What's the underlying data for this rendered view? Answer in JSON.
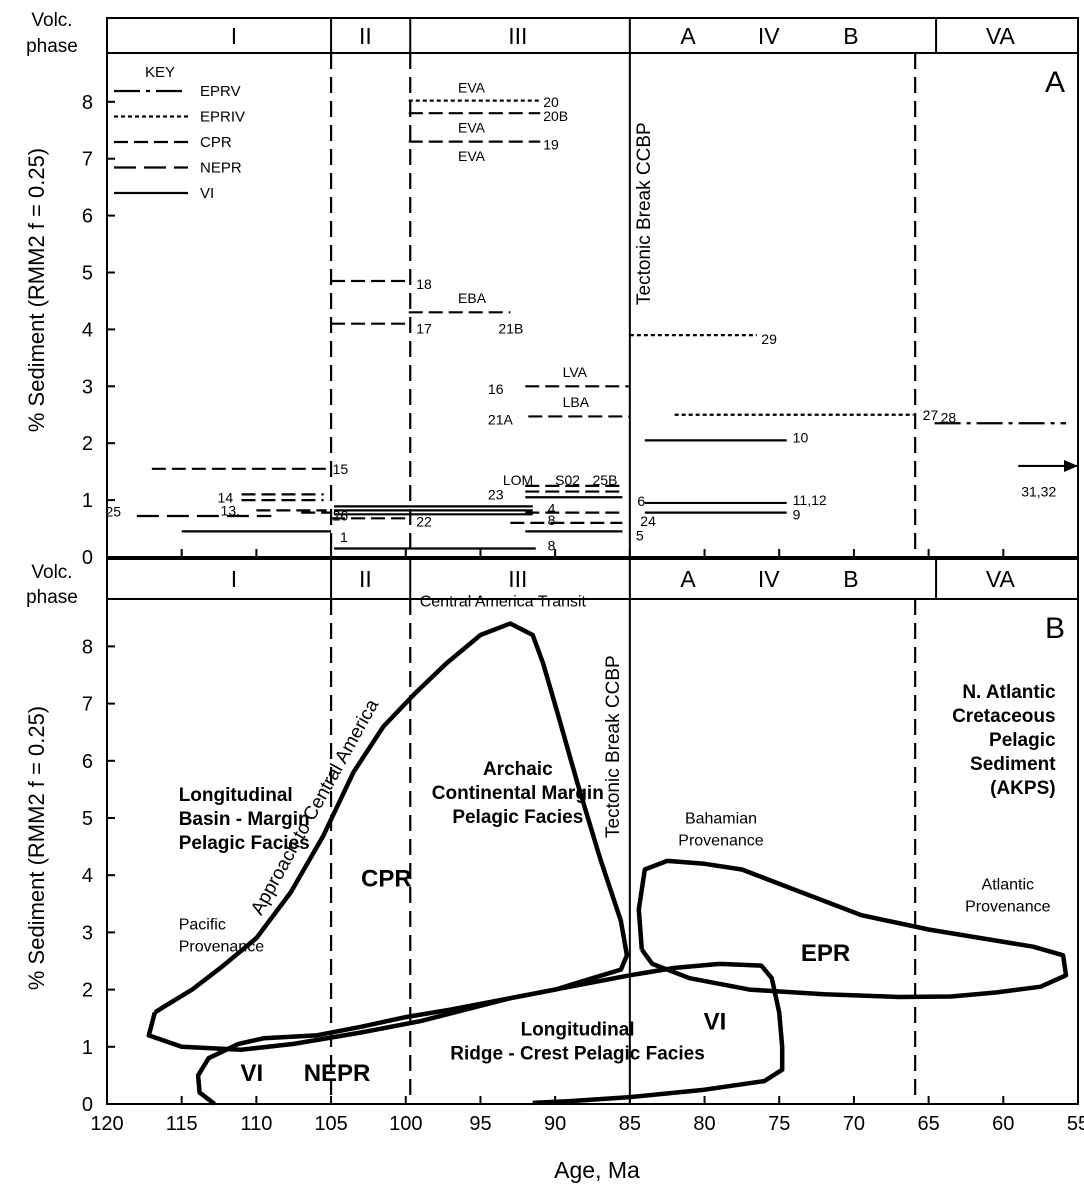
{
  "chart_data": [
    {
      "type": "line",
      "panel_label": "A",
      "ylabel": "% Sediment (RMM2 f = 0.25)",
      "xlim": [
        120,
        55
      ],
      "ylim": [
        0,
        9
      ],
      "y_ticks": [
        "0",
        "1",
        "2",
        "3",
        "4",
        "5",
        "6",
        "7",
        "8"
      ],
      "phase_label": [
        "Volc.",
        "phase"
      ],
      "phases": [
        {
          "label": "I",
          "x": 111.5
        },
        {
          "label": "II",
          "x": 102.7
        },
        {
          "label": "III",
          "x": 92.5
        },
        {
          "label": "A",
          "x": 81.1
        },
        {
          "label": "IV",
          "x": 75.7
        },
        {
          "label": "B",
          "x": 70.2
        },
        {
          "label": "VA",
          "x": 60.2
        }
      ],
      "phase_dividers": [
        105,
        99.7,
        85,
        64.5
      ],
      "dashed_dividers": [
        105,
        99.7,
        65.9
      ],
      "tectonic_break": {
        "x": 85,
        "label": "Tectonic Break CCBP"
      },
      "key_title": "KEY",
      "key": [
        {
          "name": "EPRV",
          "style": "dashdot"
        },
        {
          "name": "EPRIV",
          "style": "dotted"
        },
        {
          "name": "CPR",
          "style": "dashed"
        },
        {
          "name": "NEPR",
          "style": "longdash"
        },
        {
          "name": "VI",
          "style": "solid"
        }
      ],
      "segments": [
        {
          "id": "1",
          "x": [
            115,
            105
          ],
          "y": 0.45,
          "style": "solid"
        },
        {
          "id": "8",
          "x": [
            104.8,
            91.3
          ],
          "y": 0.15,
          "style": "solid"
        },
        {
          "id": "25",
          "x": [
            118,
            109
          ],
          "y": 0.72,
          "style": "longdash"
        },
        {
          "id": "13",
          "x": [
            110,
            105.3
          ],
          "y": 0.82,
          "style": "dashed"
        },
        {
          "id": "26",
          "x": [
            107,
            105
          ],
          "y": 0.78,
          "style": "dashed"
        },
        {
          "id": "14",
          "x": [
            111,
            105.5
          ],
          "y": 1.0,
          "style": "dashed"
        },
        {
          "id": "14",
          "x": [
            111,
            105.5
          ],
          "y": 1.1,
          "style": "dashed"
        },
        {
          "id": "15",
          "x": [
            117,
            105
          ],
          "y": 1.55,
          "style": "dashed"
        },
        {
          "id": "22",
          "x": [
            105,
            99.7
          ],
          "y": 0.68,
          "style": "dashed"
        },
        {
          "id": "17",
          "x": [
            105,
            99.7
          ],
          "y": 4.1,
          "style": "dashed"
        },
        {
          "id": "18",
          "x": [
            105,
            99.7
          ],
          "y": 4.85,
          "style": "dashed"
        },
        {
          "id": "",
          "x": [
            104.8,
            91.5
          ],
          "y": 0.75,
          "style": "solid"
        },
        {
          "id": "",
          "x": [
            104.8,
            91.5
          ],
          "y": 0.82,
          "style": "solid"
        },
        {
          "id": "",
          "x": [
            104.8,
            91.5
          ],
          "y": 0.89,
          "style": "solid"
        },
        {
          "id": "20",
          "x": [
            99.8,
            91
          ],
          "y": 8.02,
          "style": "dotted"
        },
        {
          "id": "20B",
          "x": [
            99.8,
            91
          ],
          "y": 7.8,
          "style": "dashed"
        },
        {
          "id": "19",
          "x": [
            99.8,
            91
          ],
          "y": 7.3,
          "style": "dashed"
        },
        {
          "id": "EBA",
          "x": [
            99.8,
            93
          ],
          "y": 4.3,
          "style": "dashed"
        },
        {
          "id": "16",
          "x": [
            92,
            85
          ],
          "y": 3.0,
          "style": "dashed"
        },
        {
          "id": "21A",
          "x": [
            91.8,
            85
          ],
          "y": 2.47,
          "style": "dashed"
        },
        {
          "id": "23",
          "x": [
            92,
            85.5
          ],
          "y": 1.05,
          "style": "solid"
        },
        {
          "id": "LOM S02 25B",
          "x": [
            92,
            85.5
          ],
          "y": 1.25,
          "style": "dashed"
        },
        {
          "id": "6",
          "x": [
            92,
            85.5
          ],
          "y": 1.15,
          "style": "dashed"
        },
        {
          "id": "4",
          "x": [
            92,
            85.5
          ],
          "y": 0.78,
          "style": "dashed"
        },
        {
          "id": "24",
          "x": [
            93,
            85.5
          ],
          "y": 0.6,
          "style": "dashed"
        },
        {
          "id": "5",
          "x": [
            92,
            85.5
          ],
          "y": 0.45,
          "style": "solid"
        },
        {
          "id": "29",
          "x": [
            85,
            76.5
          ],
          "y": 3.9,
          "style": "dotted"
        },
        {
          "id": "27",
          "x": [
            82,
            66
          ],
          "y": 2.5,
          "style": "dotted"
        },
        {
          "id": "10",
          "x": [
            84,
            74.5
          ],
          "y": 2.05,
          "style": "solid"
        },
        {
          "id": "11,12",
          "x": [
            84,
            74.5
          ],
          "y": 0.95,
          "style": "solid"
        },
        {
          "id": "9",
          "x": [
            84,
            74.5
          ],
          "y": 0.78,
          "style": "solid"
        },
        {
          "id": "28",
          "x": [
            64.6,
            55.8
          ],
          "y": 2.35,
          "style": "dashdot"
        },
        {
          "id": "31,32",
          "x": [
            59,
            55
          ],
          "y": 1.6,
          "style": "arrow"
        }
      ],
      "annotations": {
        "row_labels": [
          {
            "text": "EVA",
            "x": 96.5,
            "y": 8.25
          },
          {
            "text": "EVA",
            "x": 96.5,
            "y": 7.55
          },
          {
            "text": "EVA",
            "x": 96.5,
            "y": 7.05
          },
          {
            "text": "20",
            "x": 90.8,
            "y": 8.0
          },
          {
            "text": "20B",
            "x": 90.8,
            "y": 7.75
          },
          {
            "text": "19",
            "x": 90.8,
            "y": 7.25
          },
          {
            "text": "18",
            "x": 99.3,
            "y": 4.8
          },
          {
            "text": "17",
            "x": 99.3,
            "y": 4.02
          },
          {
            "text": "EBA",
            "x": 96.5,
            "y": 4.55
          },
          {
            "text": "21B",
            "x": 93.8,
            "y": 4.02
          },
          {
            "text": "LVA",
            "x": 89.5,
            "y": 3.25
          },
          {
            "text": "16",
            "x": 94.5,
            "y": 2.95
          },
          {
            "text": "LBA",
            "x": 89.5,
            "y": 2.72
          },
          {
            "text": "21A",
            "x": 94.5,
            "y": 2.42
          },
          {
            "text": "LOM",
            "x": 93.5,
            "y": 1.35
          },
          {
            "text": "S02",
            "x": 90,
            "y": 1.35
          },
          {
            "text": "25B",
            "x": 87.5,
            "y": 1.35
          },
          {
            "text": "23",
            "x": 94.5,
            "y": 1.1
          },
          {
            "text": "6",
            "x": 84.5,
            "y": 0.98
          },
          {
            "text": "4",
            "x": 90.5,
            "y": 0.85
          },
          {
            "text": "8",
            "x": 90.5,
            "y": 0.65
          },
          {
            "text": "24",
            "x": 84.3,
            "y": 0.63
          },
          {
            "text": "5",
            "x": 84.6,
            "y": 0.38
          },
          {
            "text": "8",
            "x": 90.5,
            "y": 0.2
          },
          {
            "text": "15",
            "x": 104.9,
            "y": 1.55
          },
          {
            "text": "14",
            "x": 112.6,
            "y": 1.05
          },
          {
            "text": "13.",
            "x": 112.4,
            "y": 0.82
          },
          {
            "text": "25",
            "x": 120.1,
            "y": 0.8
          },
          {
            "text": "26",
            "x": 104.9,
            "y": 0.73
          },
          {
            "text": "1",
            "x": 104.4,
            "y": 0.35
          },
          {
            "text": "22",
            "x": 99.3,
            "y": 0.62
          },
          {
            "text": "29",
            "x": 76.2,
            "y": 3.83
          },
          {
            "text": "27",
            "x": 65.4,
            "y": 2.5
          },
          {
            "text": "10",
            "x": 74.1,
            "y": 2.1
          },
          {
            "text": "11,12",
            "x": 74.1,
            "y": 1.0
          },
          {
            "text": "9",
            "x": 74.1,
            "y": 0.75
          },
          {
            "text": "28",
            "x": 64.2,
            "y": 2.45
          },
          {
            "text": "31,32",
            "x": 58.8,
            "y": 1.15
          }
        ]
      }
    },
    {
      "type": "area",
      "panel_label": "B",
      "xlabel": "Age, Ma",
      "ylabel": "% Sediment (RMM2 f = 0.25)",
      "xlim": [
        120,
        55
      ],
      "ylim": [
        0,
        9
      ],
      "x_ticks": [
        "120",
        "115",
        "110",
        "105",
        "100",
        "95",
        "90",
        "85",
        "80",
        "75",
        "70",
        "65",
        "60",
        "55"
      ],
      "y_ticks": [
        "0",
        "1",
        "2",
        "3",
        "4",
        "5",
        "6",
        "7",
        "8"
      ],
      "phase_label": [
        "Volc.",
        "phase"
      ],
      "phases": [
        {
          "label": "I",
          "x": 111.5
        },
        {
          "label": "II",
          "x": 102.7
        },
        {
          "label": "III",
          "x": 92.5
        },
        {
          "label": "A",
          "x": 81.1
        },
        {
          "label": "IV",
          "x": 75.7
        },
        {
          "label": "B",
          "x": 70.2
        },
        {
          "label": "VA",
          "x": 60.2
        }
      ],
      "tectonic_break": {
        "x": 85,
        "label": "Tectonic Break CCBP"
      },
      "fields": [
        {
          "name": "CPR",
          "points": [
            [
              116.8,
              1.6
            ],
            [
              117.2,
              1.2
            ],
            [
              115,
              1.0
            ],
            [
              111,
              0.95
            ],
            [
              107.5,
              1.05
            ],
            [
              103,
              1.25
            ],
            [
              99,
              1.45
            ],
            [
              96,
              1.65
            ],
            [
              93,
              1.85
            ],
            [
              90,
              2.0
            ],
            [
              87.5,
              2.2
            ],
            [
              85.6,
              2.35
            ],
            [
              85.2,
              2.6
            ],
            [
              85.6,
              3.2
            ],
            [
              87,
              4.3
            ],
            [
              88.5,
              5.6
            ],
            [
              89.8,
              6.8
            ],
            [
              90.8,
              7.7
            ],
            [
              91.5,
              8.2
            ],
            [
              93,
              8.4
            ],
            [
              95,
              8.2
            ],
            [
              97.3,
              7.7
            ],
            [
              99.3,
              7.2
            ],
            [
              101.5,
              6.6
            ],
            [
              103.5,
              5.8
            ],
            [
              105.5,
              4.7
            ],
            [
              107.7,
              3.7
            ],
            [
              110,
              2.9
            ],
            [
              112.3,
              2.4
            ],
            [
              114.3,
              2.0
            ],
            [
              116.2,
              1.7
            ],
            [
              116.8,
              1.6
            ]
          ]
        },
        {
          "name": "EPR",
          "points": [
            [
              84.2,
              2.7
            ],
            [
              84.4,
              3.4
            ],
            [
              84,
              4.1
            ],
            [
              82.5,
              4.25
            ],
            [
              80,
              4.2
            ],
            [
              77.5,
              4.1
            ],
            [
              73.5,
              3.7
            ],
            [
              69.5,
              3.3
            ],
            [
              65,
              3.05
            ],
            [
              61.5,
              2.9
            ],
            [
              58,
              2.75
            ],
            [
              56,
              2.6
            ],
            [
              55.8,
              2.25
            ],
            [
              57.5,
              2.05
            ],
            [
              60.5,
              1.95
            ],
            [
              63.5,
              1.88
            ],
            [
              67,
              1.87
            ],
            [
              72,
              1.92
            ],
            [
              77,
              2.0
            ],
            [
              81,
              2.2
            ],
            [
              83.5,
              2.45
            ],
            [
              84.2,
              2.7
            ]
          ]
        },
        {
          "name": "VI",
          "points": [
            [
              91.5,
              0.02
            ],
            [
              89,
              0.05
            ],
            [
              85,
              0.12
            ],
            [
              80,
              0.25
            ],
            [
              76,
              0.4
            ],
            [
              74.8,
              0.6
            ],
            [
              74.8,
              1.0
            ],
            [
              75,
              1.6
            ],
            [
              75.5,
              2.2
            ],
            [
              76.2,
              2.42
            ],
            [
              79,
              2.45
            ],
            [
              82,
              2.38
            ],
            [
              85,
              2.25
            ],
            [
              89,
              2.05
            ],
            [
              93,
              1.85
            ],
            [
              97,
              1.65
            ],
            [
              100,
              1.52
            ],
            [
              103,
              1.35
            ],
            [
              106,
              1.2
            ],
            [
              109.5,
              1.15
            ],
            [
              111.2,
              1.05
            ],
            [
              113.2,
              0.8
            ],
            [
              113.9,
              0.5
            ],
            [
              113.8,
              0.2
            ],
            [
              112.8,
              0.0
            ]
          ]
        }
      ],
      "field_labels": [
        {
          "text": "CPR",
          "x": 101.3,
          "y": 3.8,
          "bold": true
        },
        {
          "text": "EPR",
          "x": 71.9,
          "y": 2.5,
          "bold": true
        },
        {
          "text": "VI",
          "x": 79.3,
          "y": 1.3,
          "bold": true
        },
        {
          "text": "VI",
          "x": 110.3,
          "y": 0.4,
          "bold": true
        },
        {
          "text": "NEPR",
          "x": 104.6,
          "y": 0.4,
          "bold": true
        }
      ],
      "annotations": [
        {
          "lines": [
            "Longitudinal",
            "Basin - Margin",
            "Pelagic Facies"
          ],
          "x": 115.2,
          "y": 5.3,
          "anchor": "start",
          "bold": true
        },
        {
          "lines": [
            "Archaic",
            "Continental Margin",
            "Pelagic Facies"
          ],
          "x": 92.5,
          "y": 5.75,
          "anchor": "middle",
          "bold": true
        },
        {
          "lines": [
            "Longitudinal",
            "Ridge - Crest Pelagic Facies"
          ],
          "x": 88.5,
          "y": 1.2,
          "anchor": "middle",
          "bold": true
        },
        {
          "lines": [
            "N. Atlantic",
            "Cretaceous",
            "Pelagic",
            "Sediment",
            "(AKPS)"
          ],
          "x": 56.5,
          "y": 7.1,
          "anchor": "end",
          "bold": true
        },
        {
          "lines": [
            "Pacific",
            "Provenance"
          ],
          "x": 115.2,
          "y": 3.05,
          "anchor": "start",
          "bold": false
        },
        {
          "lines": [
            "Bahamian",
            "Provenance"
          ],
          "x": 78.9,
          "y": 4.9,
          "anchor": "middle",
          "bold": false
        },
        {
          "lines": [
            "Atlantic",
            "Provenance"
          ],
          "x": 59.7,
          "y": 3.75,
          "anchor": "middle",
          "bold": false
        },
        {
          "lines": [
            "Central America Transit"
          ],
          "x": 93.5,
          "y": 8.7,
          "anchor": "middle",
          "bold": false
        }
      ],
      "rotated_label": "Approach to Central America"
    }
  ]
}
